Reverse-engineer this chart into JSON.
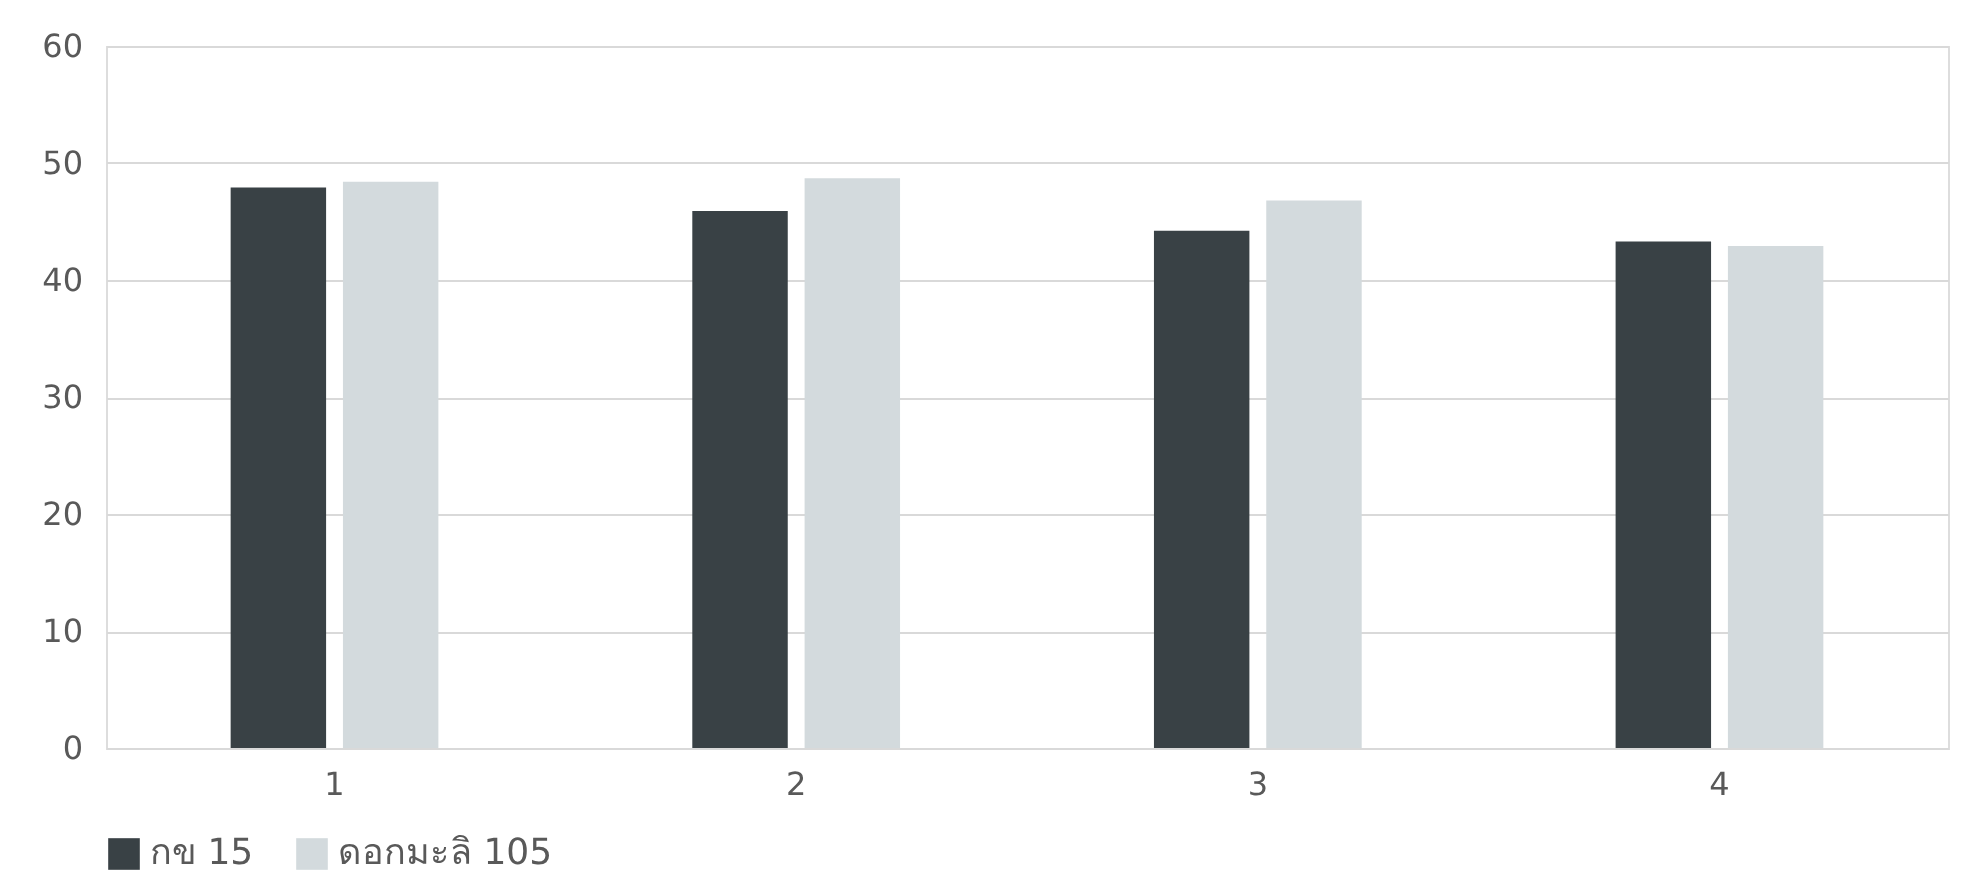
{
  "chart_data": {
    "type": "bar",
    "categories": [
      "1",
      "2",
      "3",
      "4"
    ],
    "series": [
      {
        "name": "กข 15",
        "color": "#394145",
        "values": [
          47.9,
          45.9,
          44.2,
          43.3
        ]
      },
      {
        "name": "ดอกมะลิ 105",
        "color": "#d3dadd",
        "values": [
          48.4,
          48.7,
          46.8,
          42.9
        ]
      }
    ],
    "ylim": [
      0,
      60
    ],
    "yticks": [
      0,
      10,
      20,
      30,
      40,
      50,
      60
    ],
    "grid": "y",
    "legend": "bottom"
  }
}
